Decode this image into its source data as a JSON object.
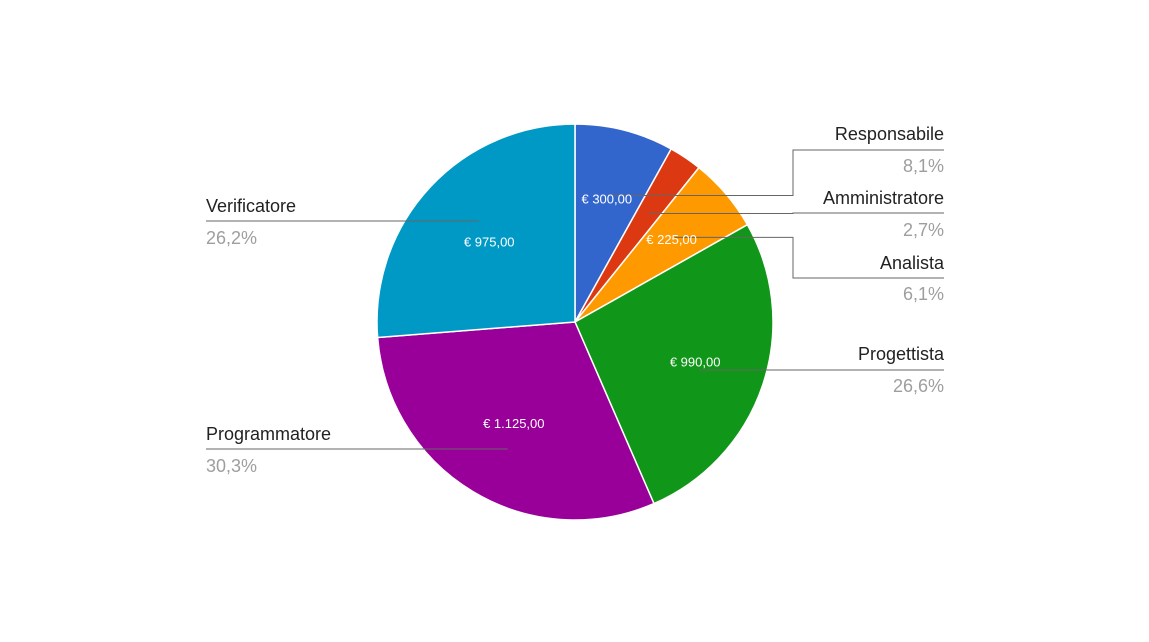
{
  "chart_data": {
    "type": "pie",
    "title": "",
    "slices": [
      {
        "name": "Responsabile",
        "value": 300,
        "value_label": "€ 300,00",
        "percent_label": "8,1%",
        "color": "#3366cc"
      },
      {
        "name": "Amministratore",
        "value": 100,
        "value_label": "",
        "percent_label": "2,7%",
        "color": "#dc3912"
      },
      {
        "name": "Analista",
        "value": 225,
        "value_label": "€ 225,00",
        "percent_label": "6,1%",
        "color": "#ff9900"
      },
      {
        "name": "Progettista",
        "value": 990,
        "value_label": "€ 990,00",
        "percent_label": "26,6%",
        "color": "#109618"
      },
      {
        "name": "Programmatore",
        "value": 1125,
        "value_label": "€ 1.125,00",
        "percent_label": "30,3%",
        "color": "#990099"
      },
      {
        "name": "Verificatore",
        "value": 975,
        "value_label": "€ 975,00",
        "percent_label": "26,2%",
        "color": "#0099c6"
      }
    ]
  }
}
